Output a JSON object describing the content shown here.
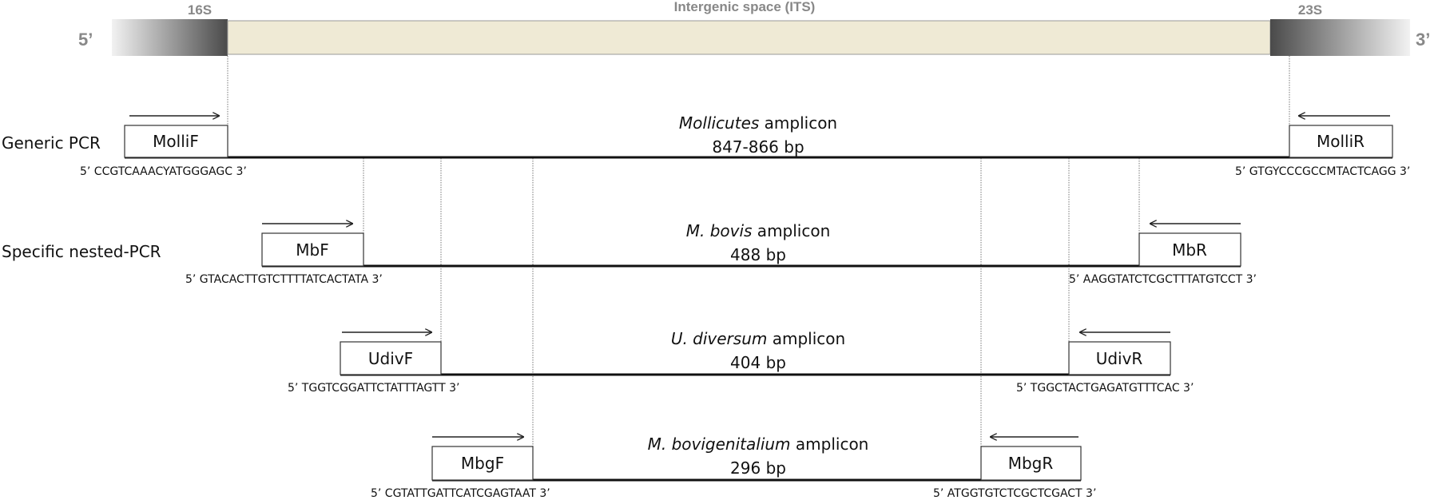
{
  "colors": {
    "its_fill": "#efead5",
    "gene_dark": "#555555",
    "gene_light": "#e6e6e6",
    "text": "#111111",
    "header_text": "#888888"
  },
  "header": {
    "five_prime": "5’",
    "three_prime": "3’",
    "gene_left": "16S",
    "gene_right": "23S",
    "its_label": "Intergenic space (ITS)"
  },
  "rows": [
    {
      "id": "generic",
      "row_label": "Generic PCR",
      "amplicon_name": "Mollicutes",
      "amplicon_suffix": " amplicon",
      "size": "847-866 bp",
      "forward": {
        "name": "MolliF",
        "seq": "5’ CCGTCAAACYATGGGAGC 3’"
      },
      "reverse": {
        "name": "MolliR",
        "seq": "5’ GTGYCCCGCCMTACTCAGG 3’"
      }
    },
    {
      "id": "mbovis",
      "row_label": "Specific nested-PCR",
      "amplicon_name": "M. bovis",
      "amplicon_suffix": " amplicon",
      "size": "488 bp",
      "forward": {
        "name": "MbF",
        "seq": "5’ GTACACTTGTCTTTTATCACTATA 3’"
      },
      "reverse": {
        "name": "MbR",
        "seq": "5’ AAGGTATCTCGCTTTATGTCCT 3’"
      }
    },
    {
      "id": "udiversum",
      "row_label": "",
      "amplicon_name": "U. diversum",
      "amplicon_suffix": " amplicon",
      "size": "404 bp",
      "forward": {
        "name": "UdivF",
        "seq": "5’ TGGTCGGATTCTATTTAGTT 3’"
      },
      "reverse": {
        "name": "UdivR",
        "seq": "5’ TGGCTACTGAGATGTTTCAC 3’"
      }
    },
    {
      "id": "mbovigenitalium",
      "row_label": "",
      "amplicon_name": "M. bovigenitalium",
      "amplicon_suffix": " amplicon",
      "size": "296 bp",
      "forward": {
        "name": "MbgF",
        "seq": "5’ CGTATTGATTCATCGAGTAAT 3’"
      },
      "reverse": {
        "name": "MbgR",
        "seq": "5’ ATGGTGTCTCGCTCGACT 3’"
      }
    }
  ]
}
